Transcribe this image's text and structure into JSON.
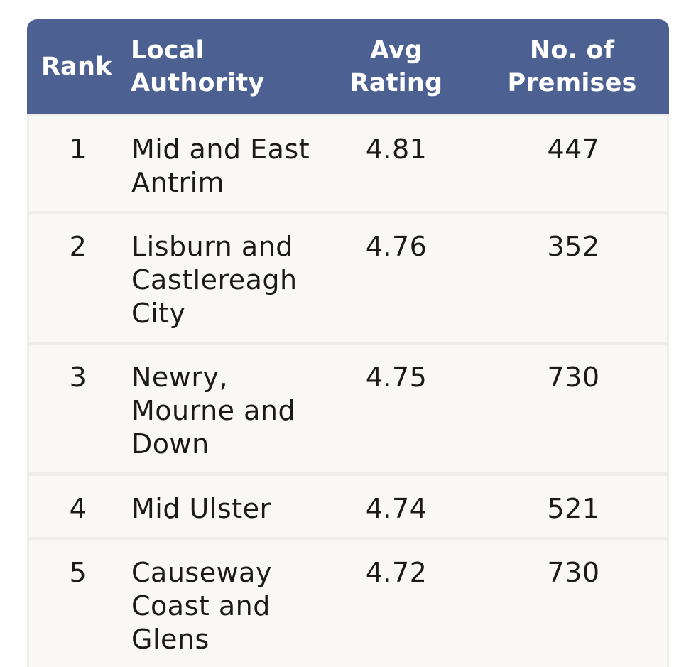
{
  "table": {
    "headers": {
      "rank": "Rank",
      "authority": "Local\nAuthority",
      "avg_rating": "Avg Rating",
      "premises": "No. of\nPremises"
    },
    "rows": [
      {
        "rank": "1",
        "authority": "Mid and East Antrim",
        "avg_rating": "4.81",
        "premises": "447"
      },
      {
        "rank": "2",
        "authority": "Lisburn and Castlereagh City",
        "avg_rating": "4.76",
        "premises": "352"
      },
      {
        "rank": "3",
        "authority": "Newry, Mourne and Down",
        "avg_rating": "4.75",
        "premises": "730"
      },
      {
        "rank": "4",
        "authority": "Mid Ulster",
        "avg_rating": "4.74",
        "premises": "521"
      },
      {
        "rank": "5",
        "authority": "Causeway Coast and Glens",
        "avg_rating": "4.72",
        "premises": "730"
      }
    ]
  },
  "colors": {
    "header_bg": "#4c6191",
    "header_text": "#ffffff",
    "row_bg": "#f9f8f6",
    "separator": "#efede9",
    "body_text": "#1a1a1a"
  }
}
